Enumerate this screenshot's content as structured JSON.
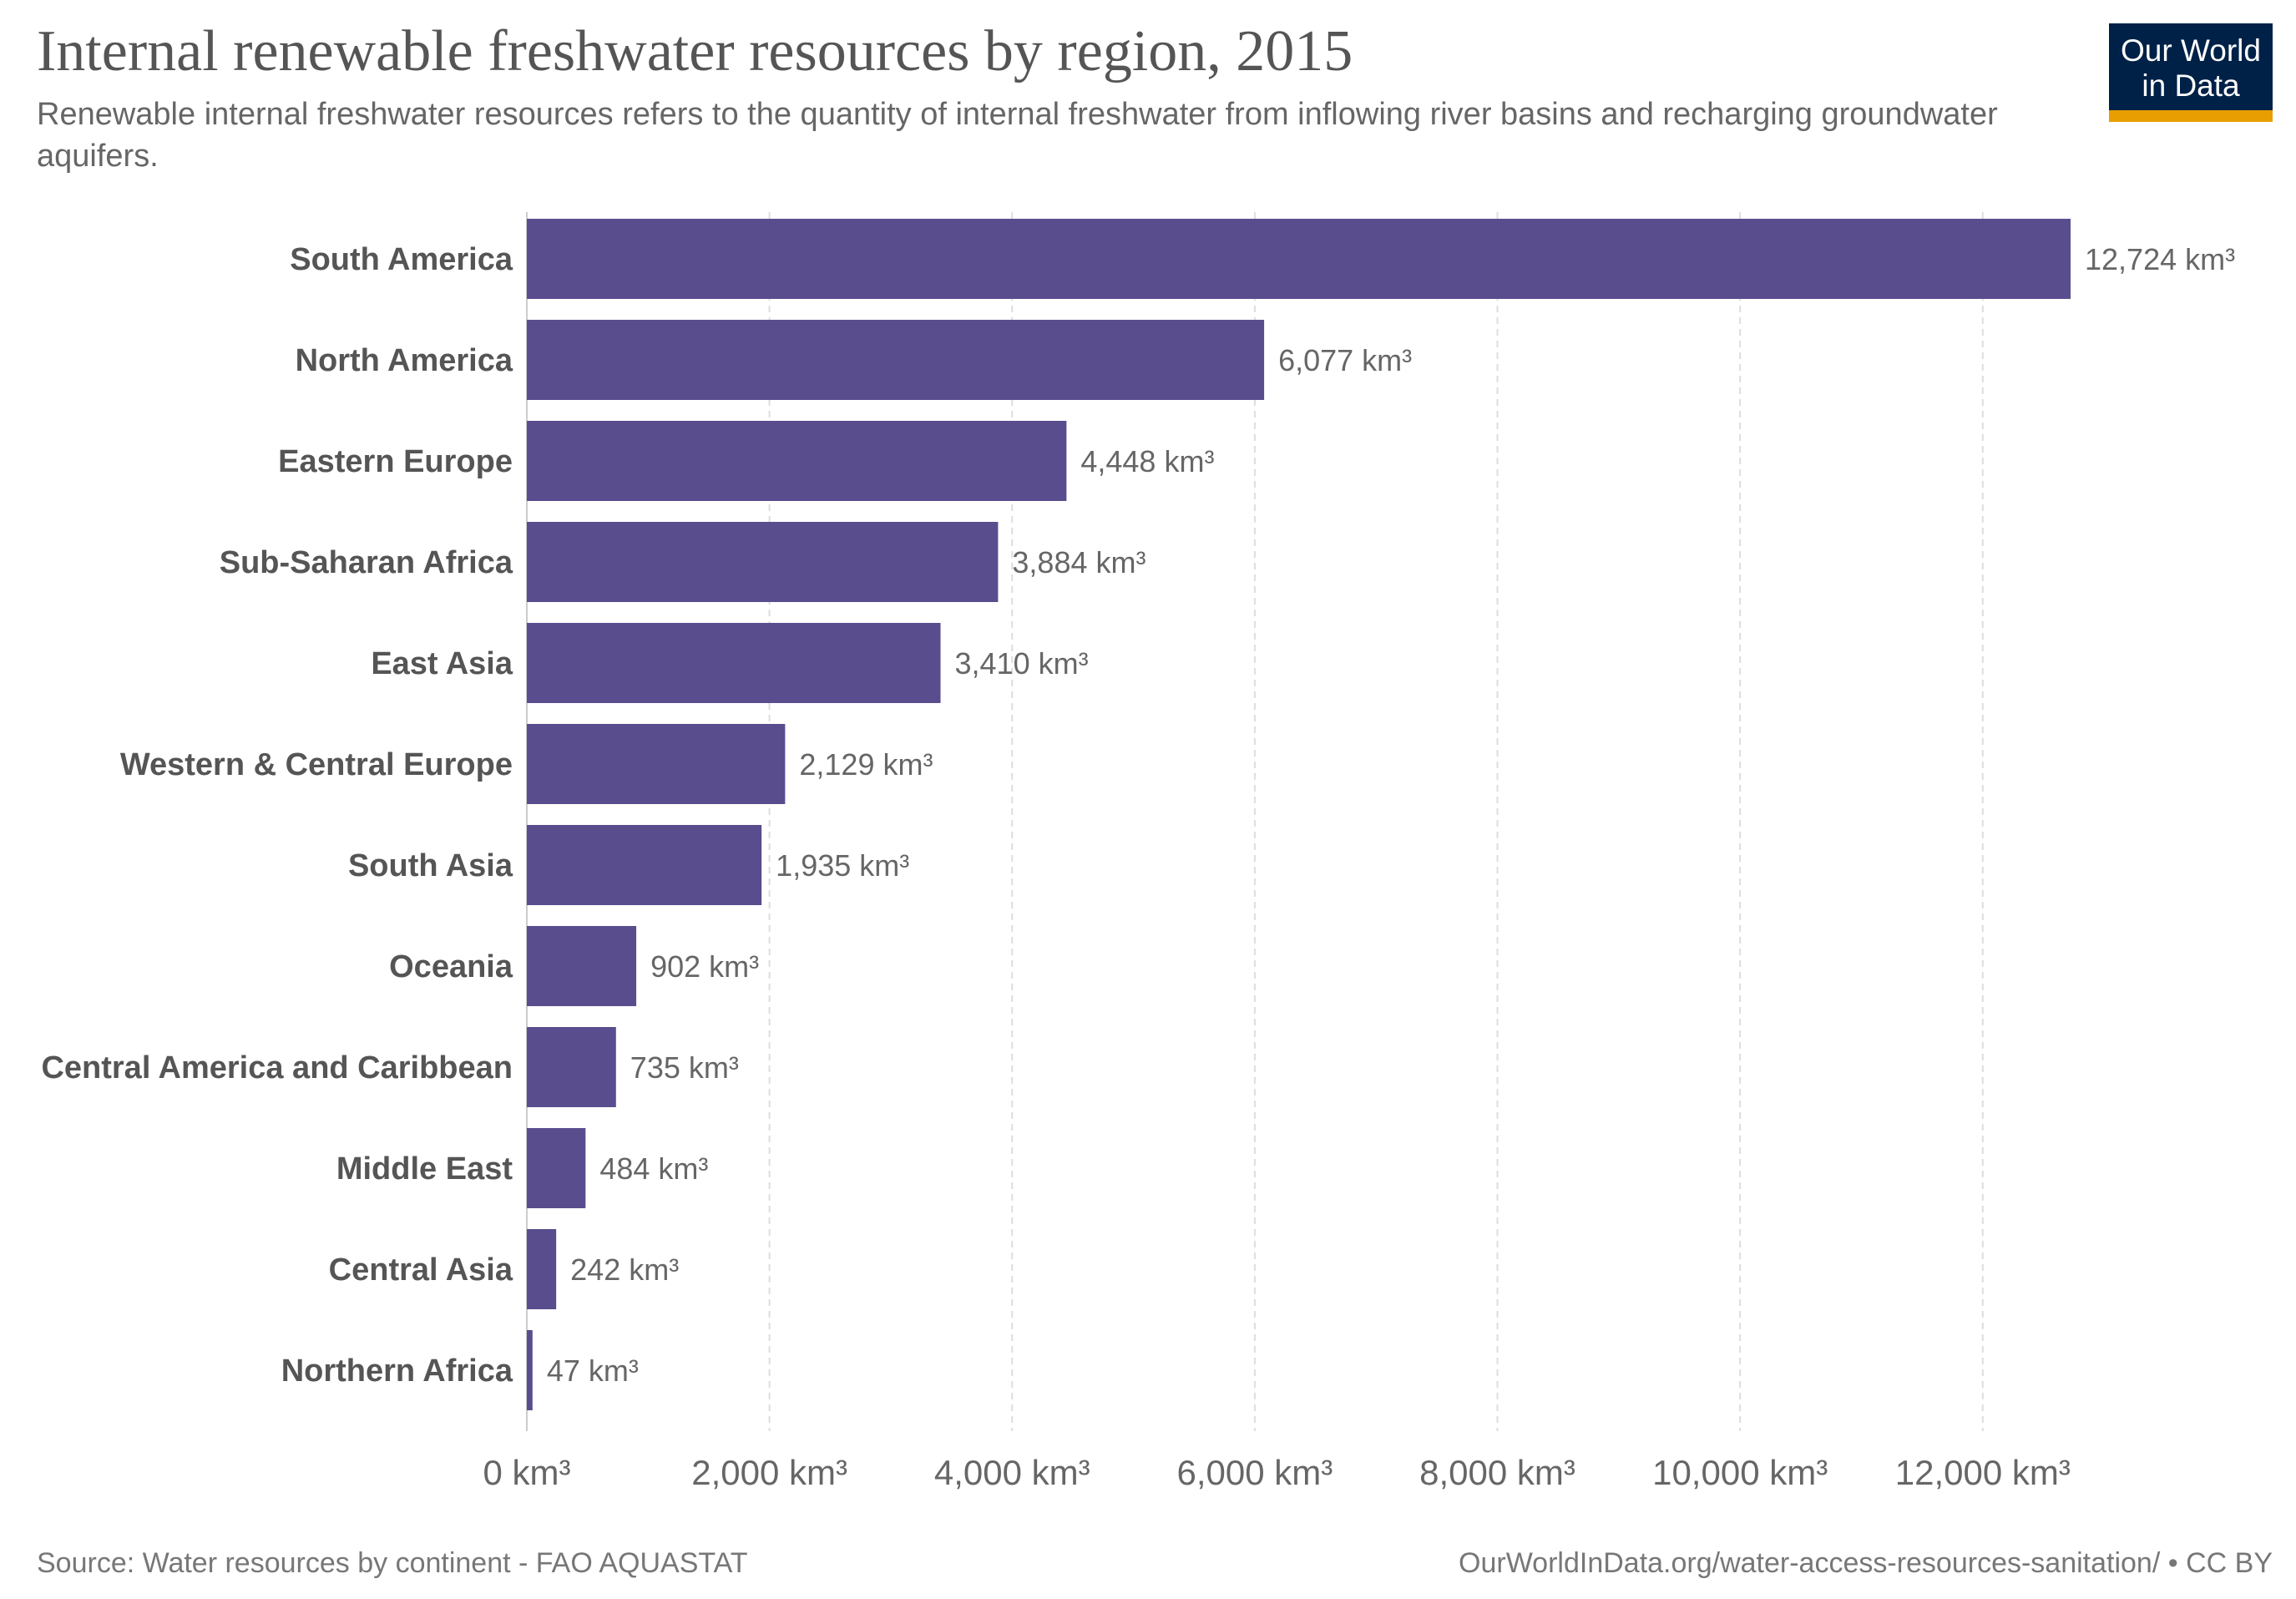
{
  "header": {
    "title": "Internal renewable freshwater resources by region, 2015",
    "subtitle": "Renewable internal freshwater resources refers to the quantity of internal freshwater from inflowing river basins and recharging groundwater aquifers."
  },
  "logo": {
    "line1": "Our World",
    "line2": "in Data",
    "background": "#002147",
    "accent": "#e89e00"
  },
  "footer": {
    "source": "Source: Water resources by continent - FAO AQUASTAT",
    "link": "OurWorldInData.org/water-access-resources-sanitation/ • CC BY"
  },
  "chart_data": {
    "type": "bar",
    "orientation": "horizontal",
    "title": "Internal renewable freshwater resources by region, 2015",
    "categories": [
      "South America",
      "North America",
      "Eastern Europe",
      "Sub-Saharan Africa",
      "East Asia",
      "Western & Central Europe",
      "South Asia",
      "Oceania",
      "Central America and Caribbean",
      "Middle East",
      "Central Asia",
      "Northern Africa"
    ],
    "values": [
      12724,
      6077,
      4448,
      3884,
      3410,
      2129,
      1935,
      902,
      735,
      484,
      242,
      47
    ],
    "unit": "km³",
    "xlim": [
      0,
      12724
    ],
    "xticks": [
      0,
      2000,
      4000,
      6000,
      8000,
      10000,
      12000
    ],
    "xtick_labels": [
      "0 km³",
      "2,000 km³",
      "4,000 km³",
      "6,000 km³",
      "8,000 km³",
      "10,000 km³",
      "12,000 km³"
    ],
    "grid": "vertical dashed",
    "legend": "none",
    "bar_color": "#5a4d8e"
  }
}
